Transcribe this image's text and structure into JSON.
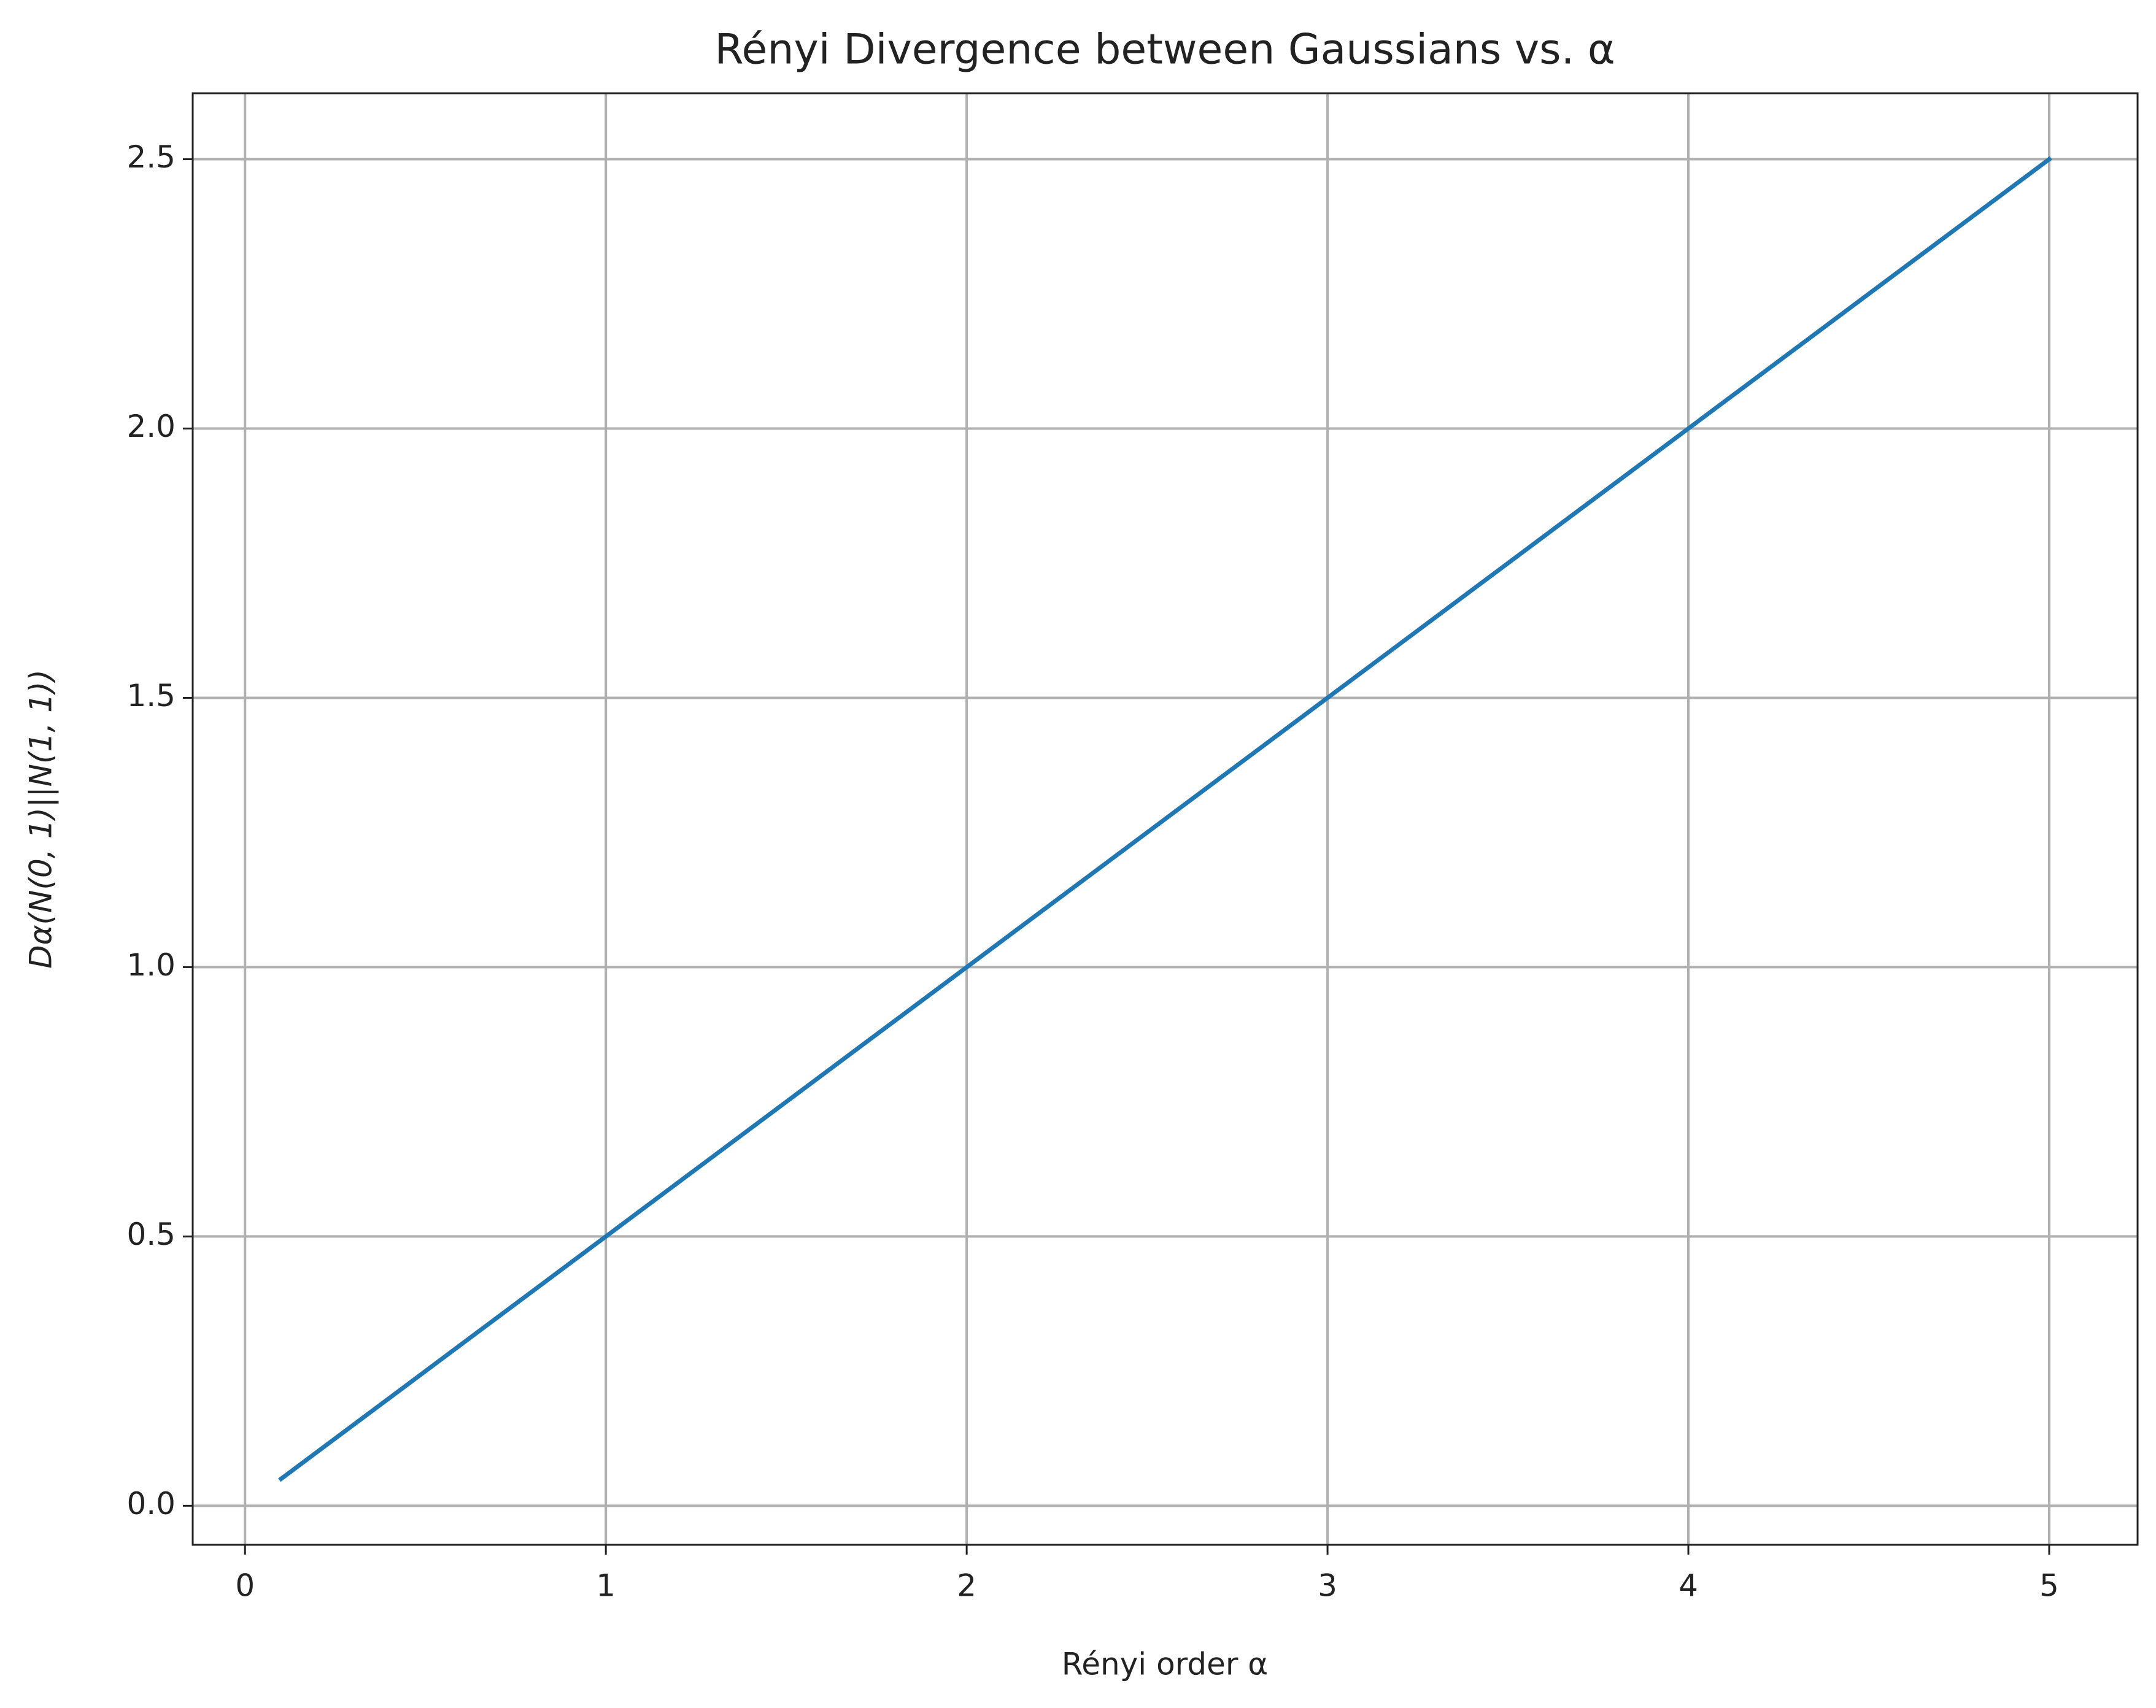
{
  "chart_data": {
    "type": "line",
    "title": "Rényi Divergence between Gaussians vs. α",
    "x_label": "Rényi order α",
    "y_label": "Dα(N(0, 1)||N(1, 1))",
    "x": [
      0.1,
      1,
      2,
      3,
      4,
      5
    ],
    "series": [
      {
        "color": "#1f77b4",
        "values": [
          0.05,
          0.5,
          1.0,
          1.5,
          2.0,
          2.5
        ]
      }
    ],
    "xlim": [
      -0.145,
      5.245
    ],
    "ylim": [
      -0.0725,
      2.6225
    ],
    "xticks": [
      0,
      1,
      2,
      3,
      4,
      5
    ],
    "yticks": [
      {
        "value": 0,
        "label": "0.0"
      },
      0.5,
      {
        "value": 1,
        "label": "1.0"
      },
      1.5,
      {
        "value": 2,
        "label": "2.0"
      },
      2.5
    ],
    "grid": true
  }
}
